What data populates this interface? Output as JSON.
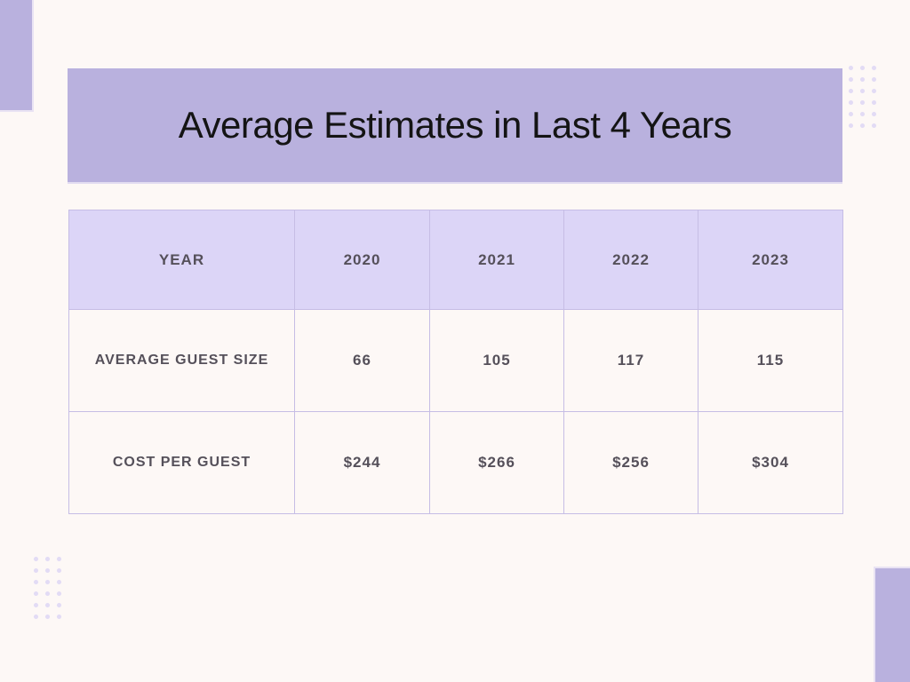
{
  "page": {
    "background_color": "#fdf8f6",
    "accent_color": "#b9b1de",
    "header_fill_color": "#dcd5f7",
    "table_border_color": "#c6bde5",
    "dot_color": "#e2dbf5",
    "body_text_color": "#55505a",
    "title_color": "#141414"
  },
  "chart_data": {
    "type": "table",
    "title": "Average Estimates in Last 4 Years",
    "columns": [
      "YEAR",
      "2020",
      "2021",
      "2022",
      "2023"
    ],
    "rows": [
      [
        "AVERAGE GUEST SIZE",
        "66",
        "105",
        "117",
        "115"
      ],
      [
        "COST PER GUEST",
        "$244",
        "$266",
        "$256",
        "$304"
      ]
    ]
  }
}
